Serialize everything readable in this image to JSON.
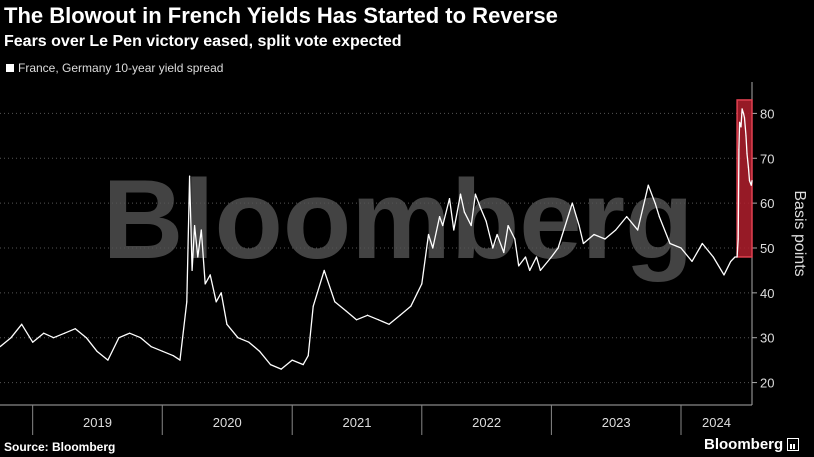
{
  "header": {
    "title": "The Blowout in French Yields Has Started to Reverse",
    "subtitle": "Fears over Le Pen victory eased, split vote expected"
  },
  "footer": {
    "source": "Source: Bloomberg",
    "brand": "Bloomberg"
  },
  "watermark": "Bloomberg",
  "colors": {
    "background": "#000000",
    "line": "#ffffff",
    "highlight_fill": "#b01e2d",
    "highlight_stroke": "#e04050",
    "grid": "#555555"
  },
  "chart_data": {
    "type": "line",
    "title": "The Blowout in French Yields Has Started to Reverse",
    "subtitle": "Fears over Le Pen victory eased, split vote expected",
    "ylabel": "Basis points",
    "xlabel": "",
    "ylim": [
      15,
      87
    ],
    "xlim": [
      "2018-10-01",
      "2024-07-19"
    ],
    "y_ticks": [
      20,
      30,
      40,
      50,
      60,
      70,
      80
    ],
    "x_ticks": [
      "2019",
      "2020",
      "2021",
      "2022",
      "2023",
      "2024"
    ],
    "y_axis_side": "right",
    "grid": "horizontal dotted",
    "legend_position": "top-left",
    "series": [
      {
        "name": "France, Germany 10-year yield spread",
        "x": [
          "2018-10-01",
          "2018-11-01",
          "2018-12-01",
          "2019-01-01",
          "2019-02-01",
          "2019-03-01",
          "2019-04-01",
          "2019-05-01",
          "2019-06-01",
          "2019-07-01",
          "2019-08-01",
          "2019-09-01",
          "2019-10-01",
          "2019-11-01",
          "2019-12-01",
          "2020-01-01",
          "2020-02-01",
          "2020-02-20",
          "2020-03-10",
          "2020-03-18",
          "2020-03-25",
          "2020-04-01",
          "2020-04-10",
          "2020-04-20",
          "2020-05-01",
          "2020-05-15",
          "2020-06-01",
          "2020-06-15",
          "2020-07-01",
          "2020-08-01",
          "2020-09-01",
          "2020-10-01",
          "2020-11-01",
          "2020-12-01",
          "2021-01-01",
          "2021-02-01",
          "2021-02-15",
          "2021-03-01",
          "2021-04-01",
          "2021-05-01",
          "2021-06-01",
          "2021-07-01",
          "2021-08-01",
          "2021-09-01",
          "2021-10-01",
          "2021-11-01",
          "2021-12-01",
          "2022-01-01",
          "2022-01-20",
          "2022-02-01",
          "2022-02-20",
          "2022-03-01",
          "2022-03-20",
          "2022-04-01",
          "2022-04-20",
          "2022-05-01",
          "2022-05-20",
          "2022-06-01",
          "2022-06-15",
          "2022-07-01",
          "2022-07-20",
          "2022-08-01",
          "2022-08-20",
          "2022-09-01",
          "2022-09-20",
          "2022-10-01",
          "2022-10-20",
          "2022-11-01",
          "2022-11-20",
          "2022-12-01",
          "2023-01-01",
          "2023-01-20",
          "2023-02-01",
          "2023-03-01",
          "2023-03-20",
          "2023-04-01",
          "2023-05-01",
          "2023-06-01",
          "2023-07-01",
          "2023-08-01",
          "2023-09-01",
          "2023-10-01",
          "2023-10-20",
          "2023-11-01",
          "2023-12-01",
          "2024-01-01",
          "2024-02-01",
          "2024-03-01",
          "2024-04-01",
          "2024-05-01",
          "2024-05-20",
          "2024-06-01",
          "2024-06-07",
          "2024-06-10",
          "2024-06-12",
          "2024-06-14",
          "2024-06-18",
          "2024-06-21",
          "2024-06-25",
          "2024-06-28",
          "2024-07-02",
          "2024-07-05",
          "2024-07-09",
          "2024-07-12",
          "2024-07-17",
          "2024-07-19"
        ],
        "values": [
          28,
          30,
          33,
          29,
          31,
          30,
          31,
          32,
          30,
          27,
          25,
          30,
          31,
          30,
          28,
          27,
          26,
          25,
          38,
          66,
          45,
          55,
          48,
          54,
          42,
          44,
          38,
          40,
          33,
          30,
          29,
          27,
          24,
          23,
          25,
          24,
          26,
          37,
          45,
          38,
          36,
          34,
          35,
          34,
          33,
          35,
          37,
          42,
          53,
          50,
          57,
          55,
          61,
          54,
          62,
          58,
          55,
          62,
          59,
          56,
          50,
          53,
          49,
          55,
          52,
          46,
          48,
          45,
          48,
          45,
          48,
          50,
          53,
          60,
          55,
          51,
          53,
          52,
          54,
          57,
          54,
          64,
          60,
          57,
          51,
          50,
          47,
          51,
          48,
          44,
          47,
          48,
          48,
          52,
          72,
          78,
          77,
          81,
          80,
          79,
          75,
          71,
          68,
          65,
          64,
          65
        ]
      }
    ],
    "highlight": {
      "x_start": "2024-06-07",
      "x_end": "2024-07-19",
      "y_start": 48,
      "y_end": 83
    }
  }
}
